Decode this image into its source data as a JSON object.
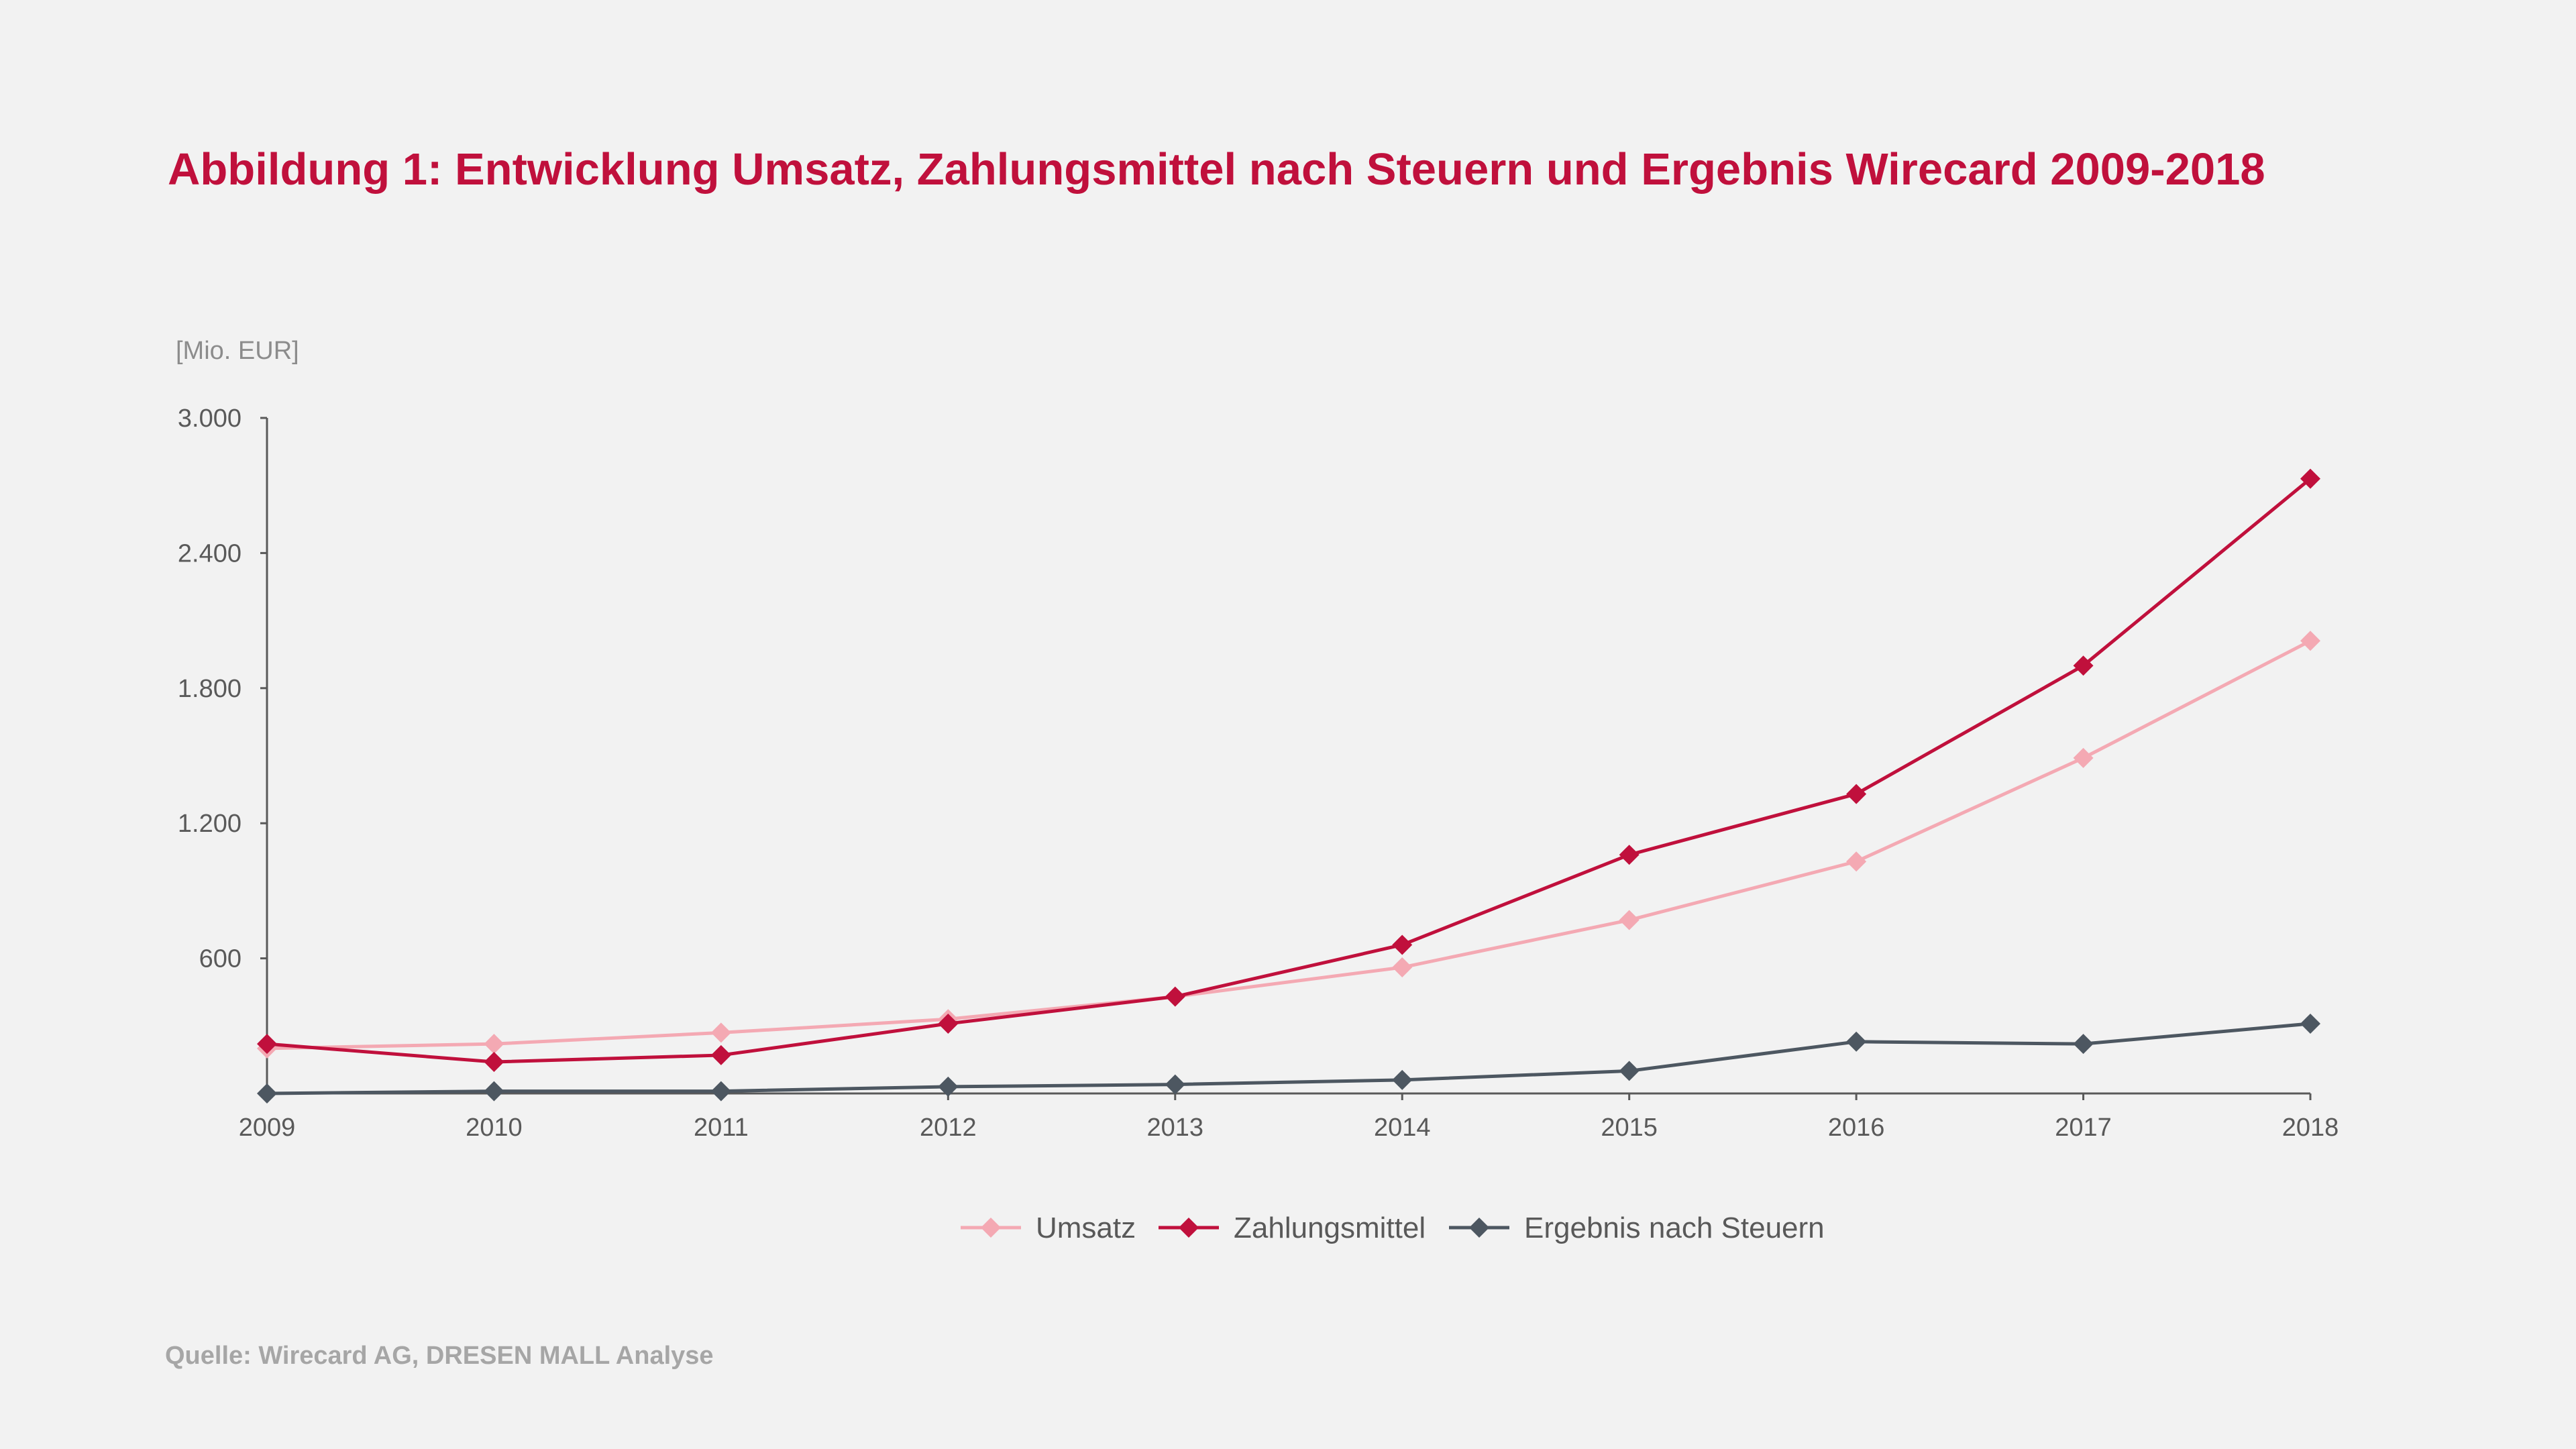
{
  "title": "Abbildung 1: Entwicklung Umsatz, Zahlungsmittel nach Steuern und Ergebnis Wirecard 2009-2018",
  "source": "Quelle: Wirecard AG, DRESEN  MALL Analyse",
  "colors": {
    "title": "#c0103c",
    "axis_text": "#595959",
    "unit_text": "#8c8c8c",
    "source_text": "#a6a6a6",
    "axis_line": "#595959",
    "background": "#f2f2f2"
  },
  "chart_data": {
    "type": "line",
    "title": "Abbildung 1: Entwicklung Umsatz, Zahlungsmittel nach Steuern und Ergebnis Wirecard 2009-2018",
    "ylabel": "[Mio. EUR]",
    "xlabel": "",
    "categories": [
      "2009",
      "2010",
      "2011",
      "2012",
      "2013",
      "2014",
      "2015",
      "2016",
      "2017",
      "2018"
    ],
    "ylim": [
      0,
      3000
    ],
    "yticks": [
      600,
      1200,
      1800,
      2400,
      3000
    ],
    "ytick_labels": [
      "600",
      "1.200",
      "1.800",
      "2.400",
      "3.000"
    ],
    "grid": false,
    "legend_position": "bottom",
    "series": [
      {
        "name": "Umsatz",
        "color": "#f4a9b3",
        "marker": "diamond",
        "values": [
          200,
          220,
          270,
          330,
          430,
          560,
          770,
          1030,
          1490,
          2010
        ]
      },
      {
        "name": "Zahlungsmittel",
        "color": "#c0103c",
        "marker": "diamond",
        "values": [
          220,
          140,
          170,
          310,
          430,
          660,
          1060,
          1330,
          1900,
          2730
        ]
      },
      {
        "name": "Ergebnis nach  Steuern",
        "color": "#4d5761",
        "marker": "diamond",
        "values": [
          0,
          10,
          10,
          30,
          40,
          60,
          100,
          230,
          220,
          310
        ]
      }
    ]
  }
}
